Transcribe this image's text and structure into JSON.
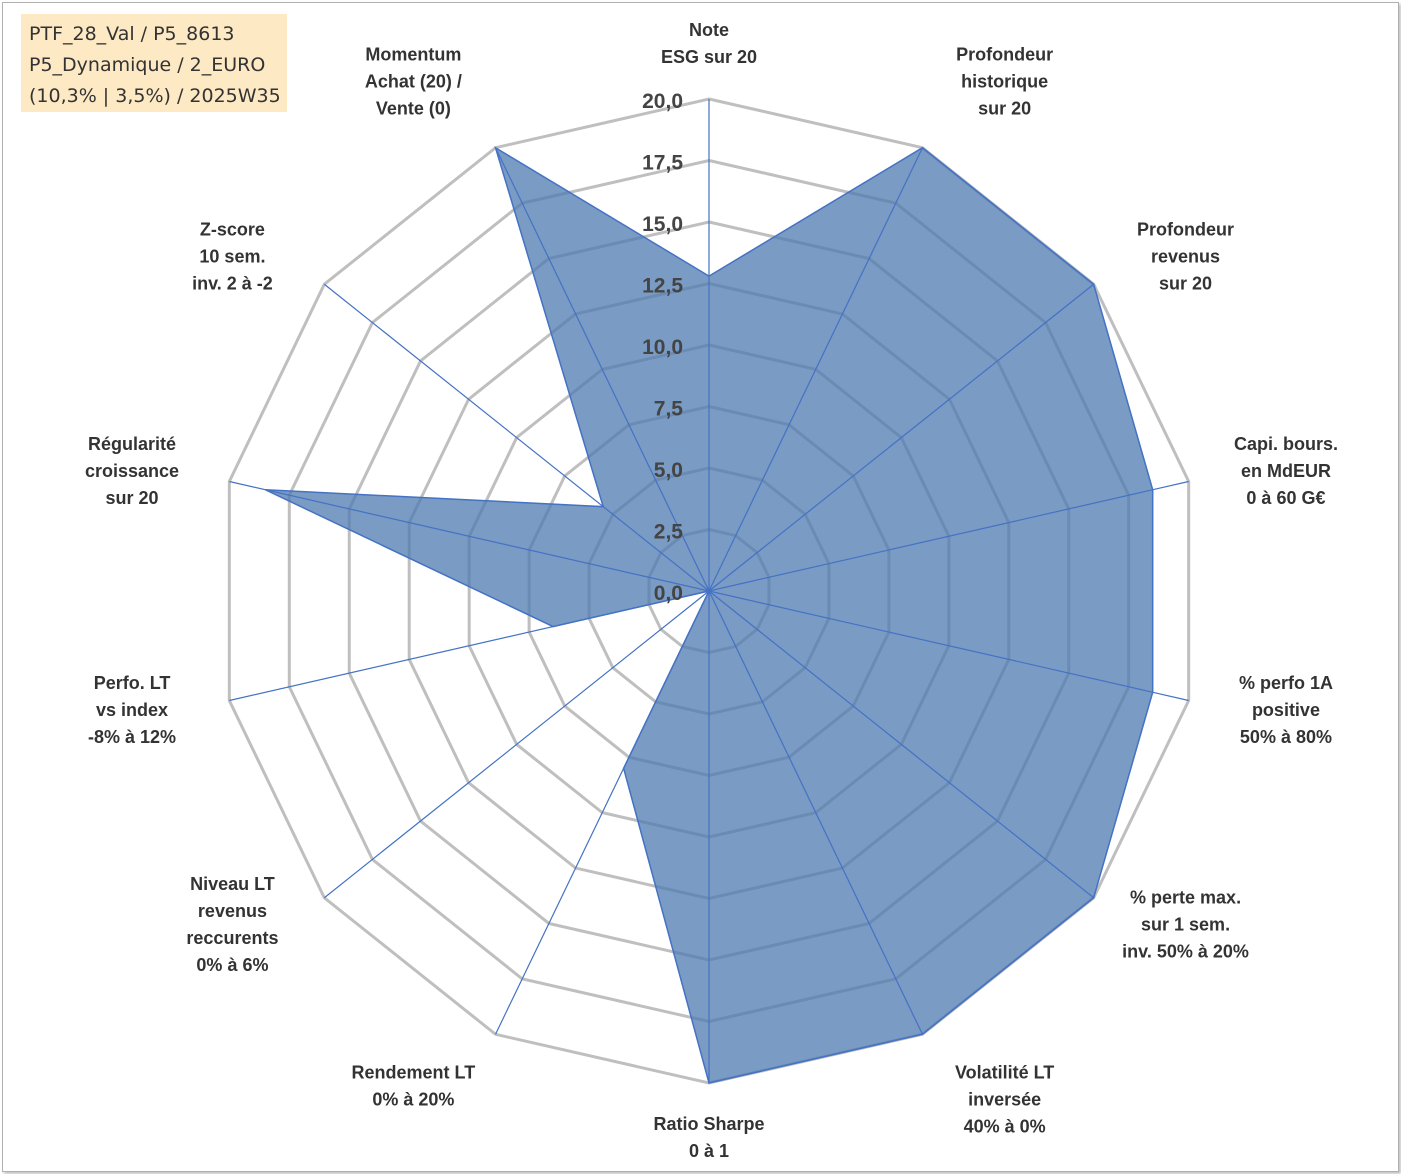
{
  "info_box": {
    "line1": "PTF_28_Val / P5_8613",
    "line2": "P5_Dynamique / 2_EURO",
    "line3": "(10,3% | 3,5%) / 2025W35"
  },
  "chart_data": {
    "type": "radar",
    "title": "",
    "range": [
      0,
      20
    ],
    "tick_step": 2.5,
    "tick_labels": [
      "0,0",
      "2,5",
      "5,0",
      "7,5",
      "10,0",
      "12,5",
      "15,0",
      "17,5",
      "20,0"
    ],
    "grid": true,
    "axes": [
      [
        "Note",
        "ESG sur 20"
      ],
      [
        "Profondeur",
        "historique",
        "sur 20"
      ],
      [
        "Profondeur",
        "revenus",
        "sur 20"
      ],
      [
        "Capi. bours.",
        "en MdEUR",
        "0 à 60 G€"
      ],
      [
        "% perfo 1A",
        "positive",
        "50% à 80%"
      ],
      [
        "% perte max.",
        "sur 1 sem.",
        "inv. 50% à 20%"
      ],
      [
        "Volatilité LT",
        "inversée",
        "40% à 0%"
      ],
      [
        "Ratio Sharpe",
        "0 à 1"
      ],
      [
        "Rendement LT",
        "0% à 20%"
      ],
      [
        "Niveau LT",
        "revenus",
        "reccurents",
        "0% à 6%"
      ],
      [
        "Perfo. LT",
        "vs index",
        "-8% à 12%"
      ],
      [
        "Régularité",
        "croissance",
        "sur 20"
      ],
      [
        "Z-score",
        "10 sem.",
        "inv. 2 à -2"
      ],
      [
        "Momentum",
        "Achat (20) /",
        "Vente (0)"
      ]
    ],
    "series": [
      {
        "values": [
          12.8,
          20,
          20,
          18.5,
          18.5,
          20,
          20,
          20,
          8,
          0,
          6.5,
          18.5,
          5.5,
          20
        ]
      }
    ],
    "colors": {
      "fill": "#4d79af",
      "stroke": "#4472c4",
      "grid": "#bfbfbf",
      "spoke": "#4472c4"
    }
  }
}
